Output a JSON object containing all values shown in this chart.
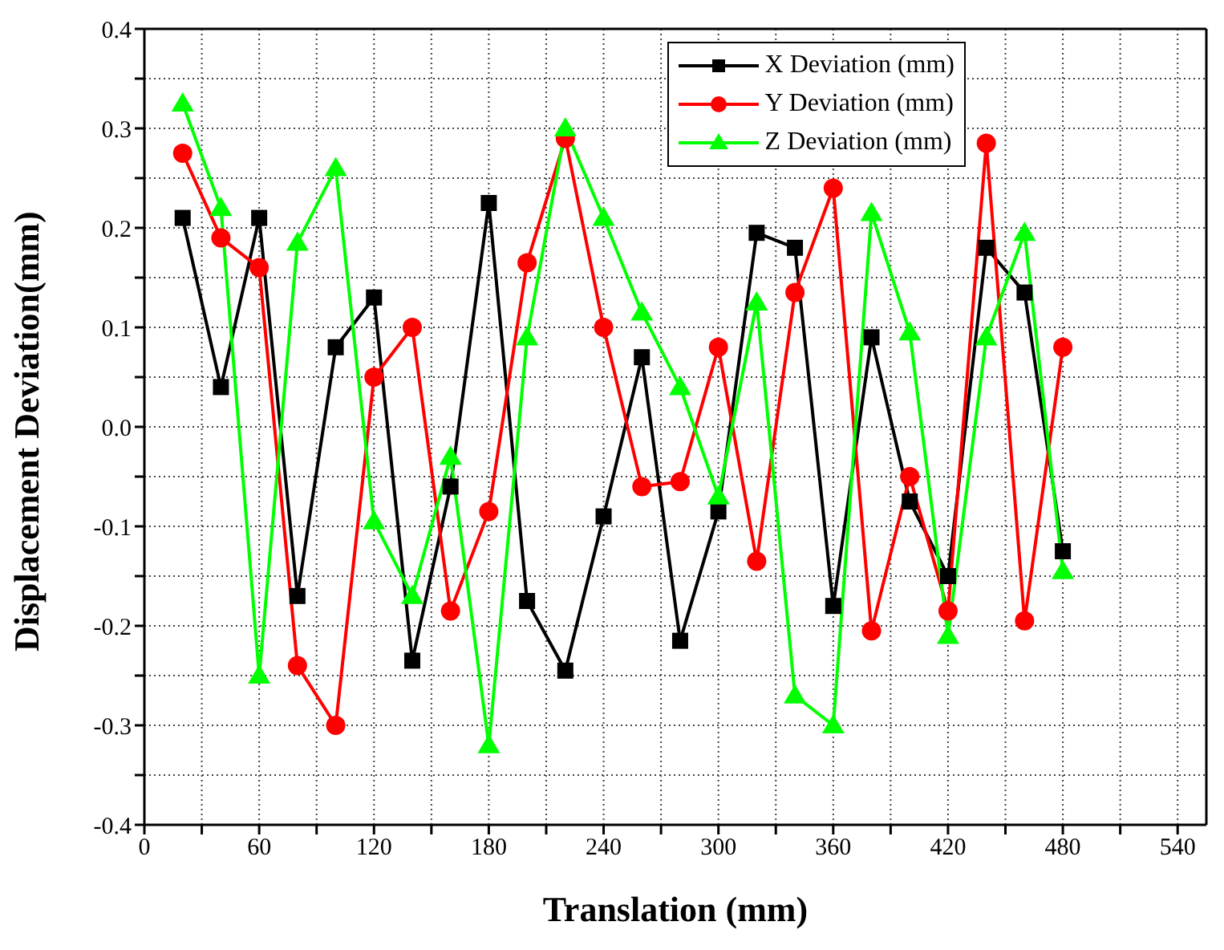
{
  "chart_data": {
    "type": "line",
    "xlabel": "Translation (mm)",
    "ylabel": "Displacement Deviation(mm)",
    "x": [
      20,
      40,
      60,
      80,
      100,
      120,
      140,
      160,
      180,
      200,
      220,
      240,
      260,
      280,
      300,
      320,
      340,
      360,
      380,
      400,
      420,
      440,
      460,
      480
    ],
    "series": [
      {
        "name": "X Deviation (mm)",
        "color": "#000000",
        "marker": "square",
        "values": [
          0.21,
          0.04,
          0.21,
          -0.17,
          0.08,
          0.13,
          -0.235,
          -0.06,
          0.225,
          -0.175,
          -0.245,
          -0.09,
          0.07,
          -0.215,
          -0.085,
          0.195,
          0.18,
          -0.18,
          0.09,
          -0.075,
          -0.15,
          0.18,
          0.135,
          -0.125
        ]
      },
      {
        "name": "Y Deviation (mm)",
        "color": "#ff0000",
        "marker": "circle",
        "values": [
          0.275,
          0.19,
          0.16,
          -0.24,
          -0.3,
          0.05,
          0.1,
          -0.185,
          -0.085,
          0.165,
          0.29,
          0.1,
          -0.06,
          -0.055,
          0.08,
          -0.135,
          0.135,
          0.24,
          -0.205,
          -0.05,
          -0.185,
          0.285,
          -0.195,
          0.08
        ]
      },
      {
        "name": "Z Deviation (mm)",
        "color": "#00ff00",
        "marker": "triangle",
        "values": [
          0.325,
          0.22,
          -0.25,
          0.185,
          0.26,
          -0.095,
          -0.17,
          -0.03,
          -0.32,
          0.09,
          0.3,
          0.21,
          0.115,
          0.04,
          -0.07,
          0.125,
          -0.27,
          -0.3,
          0.215,
          0.095,
          -0.21,
          0.09,
          0.195,
          -0.145
        ]
      }
    ],
    "xlim": [
      0,
      555
    ],
    "xticks": [
      0,
      {
        "value": 30,
        "label": null
      },
      60,
      {
        "value": 90,
        "label": null
      },
      120,
      {
        "value": 150,
        "label": null
      },
      180,
      {
        "value": 210,
        "label": null
      },
      240,
      {
        "value": 270,
        "label": null
      },
      300,
      {
        "value": 330,
        "label": null
      },
      360,
      {
        "value": 390,
        "label": null
      },
      420,
      {
        "value": 450,
        "label": null
      },
      480,
      {
        "value": 510,
        "label": null
      },
      540
    ],
    "ylim": [
      -0.4,
      0.4
    ],
    "yticks": [
      {
        "value": -0.4,
        "label": "-0.4"
      },
      {
        "value": -0.35,
        "label": null
      },
      {
        "value": -0.3,
        "label": "-0.3"
      },
      {
        "value": -0.25,
        "label": null
      },
      {
        "value": -0.2,
        "label": "-0.2"
      },
      {
        "value": -0.15,
        "label": null
      },
      {
        "value": -0.1,
        "label": "-0.1"
      },
      {
        "value": -0.05,
        "label": null
      },
      {
        "value": 0,
        "label": "0.0"
      },
      {
        "value": 0.05,
        "label": null
      },
      {
        "value": 0.1,
        "label": "0.1"
      },
      {
        "value": 0.15,
        "label": null
      },
      {
        "value": 0.2,
        "label": "0.2"
      },
      {
        "value": 0.25,
        "label": null
      },
      {
        "value": 0.3,
        "label": "0.3"
      },
      {
        "value": 0.35,
        "label": null
      },
      {
        "value": 0.4,
        "label": "0.4"
      }
    ],
    "grid": true,
    "legend": "top right",
    "line_style": "solid"
  }
}
